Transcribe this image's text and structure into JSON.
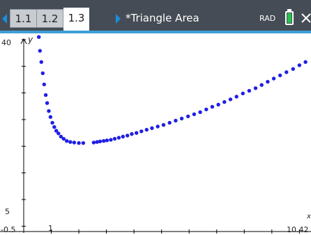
{
  "tabs": [
    {
      "label": "1.1",
      "active": false
    },
    {
      "label": "1.2",
      "active": false
    },
    {
      "label": "1.3",
      "active": true
    }
  ],
  "document_title": "*Triangle Area",
  "angle_mode": "RAD",
  "icons": {
    "prev": "arrow-left-icon",
    "next": "arrow-right-icon",
    "battery": "battery-icon",
    "close": "close-icon"
  },
  "colors": {
    "header": "#454c55",
    "accent": "#3e9fd6",
    "nav_arrow": "#1a8de0",
    "battery": "#27c24c",
    "points": "#1f1fe6"
  },
  "graph": {
    "y_axis_label": "y",
    "y_max_label": "40",
    "y_tick_label": "5",
    "x_min_label": "-0.5",
    "x_tick_label": "1",
    "x_max_label": "10.42",
    "x_axis_label": "x"
  },
  "chart_data": {
    "type": "scatter",
    "title": "",
    "xlabel": "x",
    "ylabel": "y",
    "xlim": [
      -0.5,
      10.42
    ],
    "ylim": [
      4,
      40
    ],
    "grid": false,
    "series": [
      {
        "values": [
          [
            0.55,
            40.5
          ],
          [
            0.59,
            37.9
          ],
          [
            0.64,
            35.8
          ],
          [
            0.69,
            33.7
          ],
          [
            0.74,
            31.6
          ],
          [
            0.8,
            29.6
          ],
          [
            0.85,
            28.1
          ],
          [
            0.91,
            26.6
          ],
          [
            0.97,
            25.5
          ],
          [
            1.04,
            24.4
          ],
          [
            1.11,
            23.6
          ],
          [
            1.18,
            22.9
          ],
          [
            1.26,
            22.4
          ],
          [
            1.35,
            21.8
          ],
          [
            1.45,
            21.4
          ],
          [
            1.56,
            21.0
          ],
          [
            1.69,
            20.8
          ],
          [
            1.83,
            20.7
          ],
          [
            2.0,
            20.6
          ],
          [
            2.16,
            20.6
          ],
          [
            2.54,
            20.7
          ],
          [
            2.66,
            20.8
          ],
          [
            2.77,
            20.9
          ],
          [
            2.9,
            21.0
          ],
          [
            3.02,
            21.1
          ],
          [
            3.16,
            21.2
          ],
          [
            3.3,
            21.4
          ],
          [
            3.45,
            21.6
          ],
          [
            3.6,
            21.8
          ],
          [
            3.76,
            22.0
          ],
          [
            3.92,
            22.3
          ],
          [
            4.09,
            22.5
          ],
          [
            4.27,
            22.8
          ],
          [
            4.46,
            23.1
          ],
          [
            4.65,
            23.4
          ],
          [
            4.86,
            23.7
          ],
          [
            5.07,
            24.0
          ],
          [
            5.29,
            24.4
          ],
          [
            5.51,
            24.8
          ],
          [
            5.73,
            25.2
          ],
          [
            5.96,
            25.6
          ],
          [
            6.18,
            26.0
          ],
          [
            6.4,
            26.4
          ],
          [
            6.62,
            26.9
          ],
          [
            6.84,
            27.4
          ],
          [
            7.06,
            27.8
          ],
          [
            7.28,
            28.3
          ],
          [
            7.5,
            28.8
          ],
          [
            7.72,
            29.3
          ],
          [
            7.95,
            29.9
          ],
          [
            8.18,
            30.4
          ],
          [
            8.41,
            30.9
          ],
          [
            8.63,
            31.5
          ],
          [
            8.85,
            32.1
          ],
          [
            9.07,
            32.7
          ],
          [
            9.3,
            33.3
          ],
          [
            9.53,
            33.9
          ],
          [
            9.77,
            34.5
          ],
          [
            10.0,
            35.2
          ],
          [
            10.22,
            35.8
          ]
        ]
      }
    ]
  }
}
